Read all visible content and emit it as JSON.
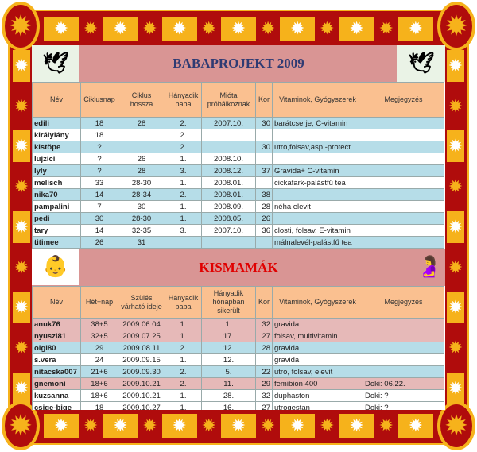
{
  "colors": {
    "frame": "#b00c0c",
    "accent": "#f6b21b",
    "header": "#fac090",
    "blue_row": "#b6dde8",
    "pink_row": "#e6b9b8",
    "title_bg": "#d99594"
  },
  "babaprojekt": {
    "title": "BABAPROJEKT 2009",
    "headers": [
      "Név",
      "Ciklusnap",
      "Ciklus hossza",
      "Hányadik baba",
      "Mióta próbálkoznak",
      "Kor",
      "Vitaminok, Gyógyszerek",
      "Megjegyzés"
    ],
    "rows": [
      {
        "c": [
          "edili",
          "18",
          "28",
          "2.",
          "2007.10.",
          "30",
          "barátcserje, C-vitamin",
          ""
        ]
      },
      {
        "c": [
          "királylány",
          "18",
          "",
          "2.",
          "",
          "",
          "",
          ""
        ]
      },
      {
        "c": [
          "kistöpe",
          "?",
          "",
          "2.",
          "",
          "30",
          "utro,folsav,asp.-protect",
          ""
        ]
      },
      {
        "c": [
          "lujzici",
          "?",
          "26",
          "1.",
          "2008.10.",
          "",
          "",
          ""
        ]
      },
      {
        "c": [
          "lyly",
          "?",
          "28",
          "3.",
          "2008.12.",
          "37",
          "Gravida+ C-vitamin",
          ""
        ]
      },
      {
        "c": [
          "melisch",
          "33",
          "28-30",
          "1.",
          "2008.01.",
          "",
          "cickafark-palástfű tea",
          ""
        ]
      },
      {
        "c": [
          "nika70",
          "14",
          "28-34",
          "2.",
          "2008.01.",
          "38",
          "",
          ""
        ]
      },
      {
        "c": [
          "pampalini",
          "7",
          "30",
          "1.",
          "2008.09.",
          "28",
          "néha elevit",
          ""
        ]
      },
      {
        "c": [
          "pedi",
          "30",
          "28-30",
          "1.",
          "2008.05.",
          "26",
          "",
          ""
        ]
      },
      {
        "c": [
          "tary",
          "14",
          "32-35",
          "3.",
          "2007.10.",
          "36",
          "closti, folsav, E-vitamin",
          ""
        ]
      },
      {
        "c": [
          "titimee",
          "26",
          "31",
          "",
          "",
          "",
          "málnalevél-palástfű tea",
          ""
        ]
      }
    ]
  },
  "kismamak": {
    "title": "KISMAMÁK",
    "headers": [
      "Név",
      "Hét+nap",
      "Szülés várható ideje",
      "Hányadik baba",
      "Hányadik hónapban sikerült",
      "Kor",
      "Vitaminok, Gyógyszerek",
      "Megjegyzés"
    ],
    "rows": [
      {
        "c": [
          "anuk76",
          "38+5",
          "2009.06.04",
          "1.",
          "1.",
          "32",
          "gravida",
          ""
        ]
      },
      {
        "c": [
          "nyuszi81",
          "32+5",
          "2009.07.25",
          "1.",
          "17.",
          "27",
          "folsav, multivitamin",
          ""
        ]
      },
      {
        "c": [
          "olgi80",
          "29",
          "2009.08.11",
          "2.",
          "12.",
          "28",
          "gravida",
          ""
        ]
      },
      {
        "c": [
          "s.vera",
          "24",
          "2009.09.15",
          "1.",
          "12.",
          "",
          "gravida",
          ""
        ]
      },
      {
        "c": [
          "nitacska007",
          "21+6",
          "2009.09.30",
          "2.",
          "5.",
          "22",
          "utro, folsav, elevit",
          ""
        ]
      },
      {
        "c": [
          "gnemoni",
          "18+6",
          "2009.10.21",
          "2.",
          "11.",
          "29",
          "femibion 400",
          "Doki: 06.22."
        ]
      },
      {
        "c": [
          "kuzsanna",
          "18+6",
          "2009.10.21",
          "1.",
          "28.",
          "32",
          "duphaston",
          "Doki: ?"
        ]
      },
      {
        "c": [
          "csige-bige",
          "18",
          "2009.10.27",
          "1.",
          "16.",
          "27",
          "utrogestan",
          "Doki: ?"
        ]
      }
    ]
  }
}
